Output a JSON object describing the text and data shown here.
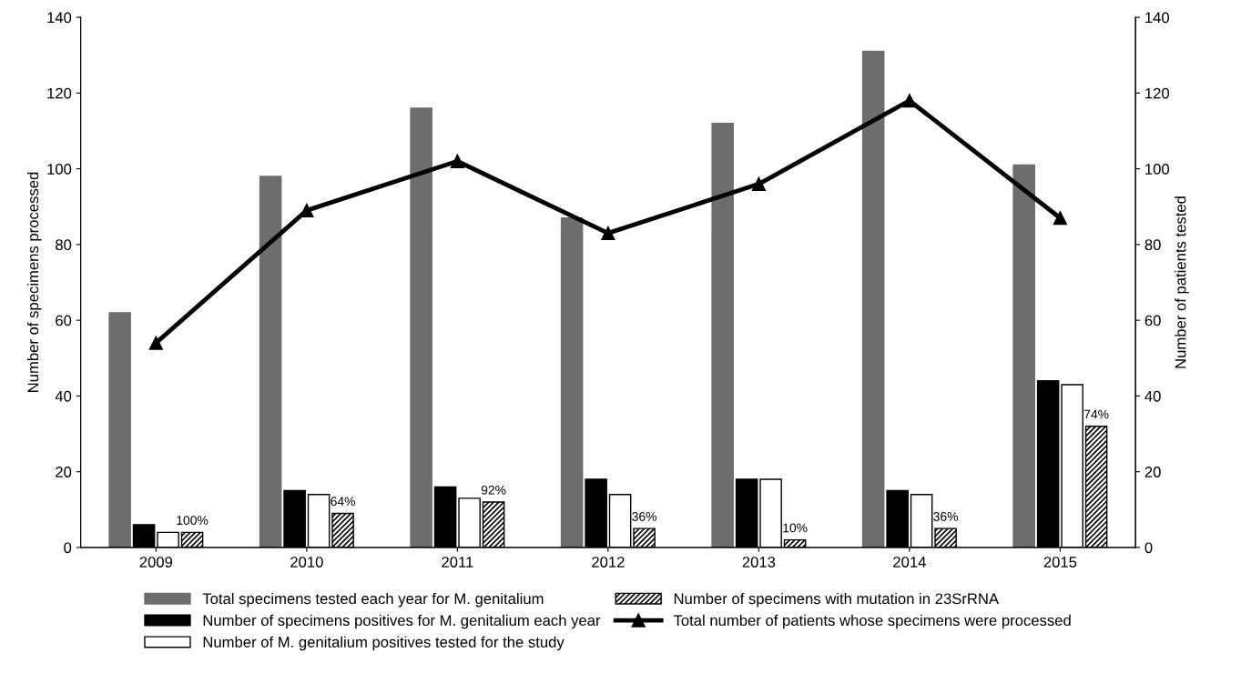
{
  "chart_data": {
    "type": "bar",
    "ylabel": "Number of specimens processed",
    "y2label": "Number of patients tested",
    "categories": [
      "2009",
      "2010",
      "2011",
      "2012",
      "2013",
      "2014",
      "2015"
    ],
    "series": [
      {
        "name": "Total specimens tested each year for M. genitalium",
        "color": "#6d6d6d",
        "values": [
          62,
          98,
          116,
          87,
          112,
          131,
          101
        ]
      },
      {
        "name": "Number of specimens positives for M. genitalium each year",
        "color": "#000000",
        "values": [
          6,
          15,
          16,
          18,
          18,
          15,
          44
        ]
      },
      {
        "name": "Number of M. genitalium positives tested for the study",
        "color": "#ffffff",
        "values": [
          4,
          14,
          13,
          14,
          18,
          14,
          43
        ]
      },
      {
        "name": "Number of specimens with mutation in 23SrRNA",
        "color": "#000000",
        "values": [
          4,
          9,
          12,
          5,
          2,
          5,
          32
        ]
      },
      {
        "name": "Total number of patients whose specimens were processed",
        "type": "line",
        "axis": "y2",
        "color": "#000000",
        "marker": "triangle",
        "values": [
          54,
          89,
          102,
          83,
          96,
          118,
          87
        ]
      }
    ],
    "ylim": [
      0,
      140
    ],
    "yticks": [
      0,
      20,
      40,
      60,
      80,
      100,
      120,
      140
    ],
    "y2lim": [
      0,
      140
    ],
    "y2ticks": [
      0,
      20,
      40,
      60,
      80,
      100,
      120,
      140
    ],
    "annotations": [
      {
        "text": "100%",
        "x": "2009",
        "y": 4
      },
      {
        "text": "64%",
        "x": "2010",
        "y": 9
      },
      {
        "text": "92%",
        "x": "2011",
        "y": 12
      },
      {
        "text": "36%",
        "x": "2012",
        "y": 5
      },
      {
        "text": "10%",
        "x": "2013",
        "y": 2
      },
      {
        "text": "36%",
        "x": "2014",
        "y": 5
      },
      {
        "text": "74%",
        "x": "2015",
        "y": 32
      }
    ],
    "grid": false,
    "legend": "bottom"
  }
}
